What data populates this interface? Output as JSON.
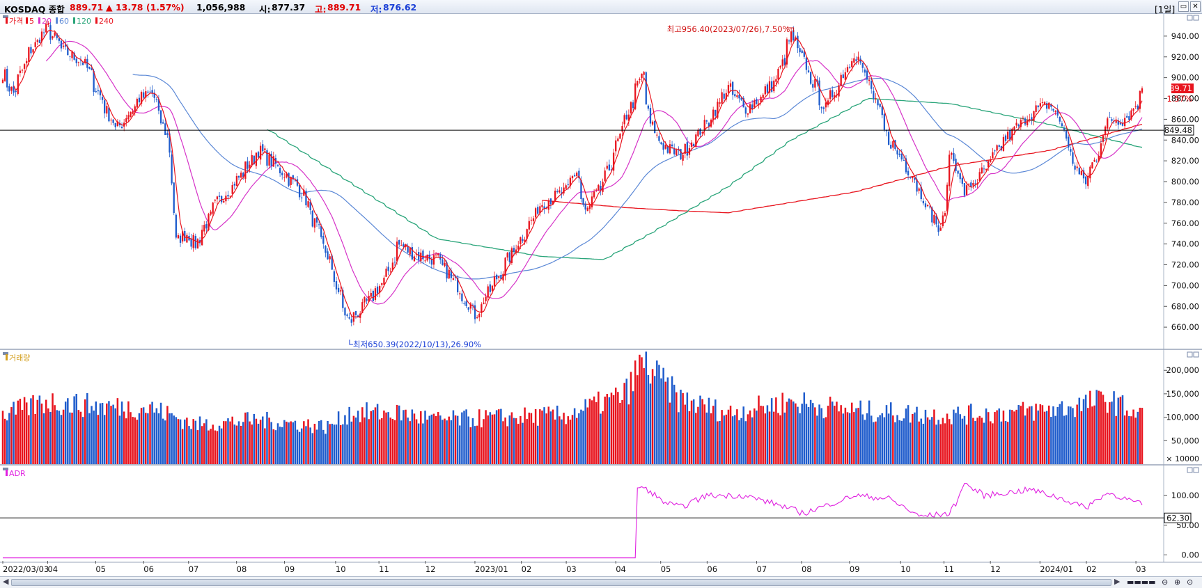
{
  "header": {
    "symbol": "KOSDAQ 종합",
    "price": "889.71",
    "change": "▲ 13.78 (1.57%)",
    "volume": "1,056,988",
    "open_label": "시:",
    "open": "877.37",
    "high_label": "고:",
    "high": "889.71",
    "low_label": "저:",
    "low": "876.62",
    "period": "[1일]",
    "min_icon": "minimize-icon",
    "close_icon": "close-icon"
  },
  "colors": {
    "up": "#e8141e",
    "down": "#1f5ccc",
    "ma5": "#e8141e",
    "ma20": "#d633c8",
    "ma60": "#5b88d6",
    "ma120": "#2aa57a",
    "ma240": "#e8141e",
    "adr": "#e020e0"
  },
  "chart_data": [
    {
      "type": "candlestick",
      "legend": [
        {
          "label": "가격",
          "color": "#e8141e"
        },
        {
          "label": "5",
          "color": "#e8141e"
        },
        {
          "label": "20",
          "color": "#d633c8"
        },
        {
          "label": "60",
          "color": "#5b88d6"
        },
        {
          "label": "120",
          "color": "#2aa57a"
        },
        {
          "label": "240",
          "color": "#e8141e"
        }
      ],
      "ylim": [
        640,
        960
      ],
      "yticks": [
        660,
        680,
        700,
        720,
        740,
        760,
        780,
        800,
        820,
        840,
        860,
        880,
        900,
        920,
        940
      ],
      "current_price_label": "889.71",
      "current_change_label": "1.57%",
      "horizontal_line": 849.48,
      "horizontal_line_label": "849.48",
      "annotation_high": "최고956.40(2023/07/26),7.50%",
      "annotation_low": "최저650.39(2022/10/13),26.90%",
      "close_points": [
        [
          "2022-03-03",
          905
        ],
        [
          "2022-03-10",
          885
        ],
        [
          "2022-03-21",
          925
        ],
        [
          "2022-04-01",
          948
        ],
        [
          "2022-04-12",
          925
        ],
        [
          "2022-04-25",
          915
        ],
        [
          "2022-05-09",
          870
        ],
        [
          "2022-05-16",
          850
        ],
        [
          "2022-05-31",
          880
        ],
        [
          "2022-06-08",
          885
        ],
        [
          "2022-06-20",
          830
        ],
        [
          "2022-06-23",
          742
        ],
        [
          "2022-06-30",
          750
        ],
        [
          "2022-07-06",
          740
        ],
        [
          "2022-07-20",
          780
        ],
        [
          "2022-08-01",
          800
        ],
        [
          "2022-08-16",
          830
        ],
        [
          "2022-08-31",
          810
        ],
        [
          "2022-09-13",
          790
        ],
        [
          "2022-09-30",
          725
        ],
        [
          "2022-10-07",
          690
        ],
        [
          "2022-10-13",
          665
        ],
        [
          "2022-10-26",
          685
        ],
        [
          "2022-11-07",
          710
        ],
        [
          "2022-11-14",
          740
        ],
        [
          "2022-11-25",
          730
        ],
        [
          "2022-12-09",
          725
        ],
        [
          "2022-12-22",
          700
        ],
        [
          "2023-01-03",
          672
        ],
        [
          "2023-01-16",
          705
        ],
        [
          "2023-02-01",
          745
        ],
        [
          "2023-02-15",
          780
        ],
        [
          "2023-03-02",
          790
        ],
        [
          "2023-03-09",
          810
        ],
        [
          "2023-03-15",
          770
        ],
        [
          "2023-03-27",
          800
        ],
        [
          "2023-04-10",
          860
        ],
        [
          "2023-04-21",
          905
        ],
        [
          "2023-04-26",
          855
        ],
        [
          "2023-05-04",
          835
        ],
        [
          "2023-05-15",
          825
        ],
        [
          "2023-06-01",
          855
        ],
        [
          "2023-06-15",
          890
        ],
        [
          "2023-06-26",
          870
        ],
        [
          "2023-07-06",
          880
        ],
        [
          "2023-07-17",
          900
        ],
        [
          "2023-07-26",
          940
        ],
        [
          "2023-08-03",
          915
        ],
        [
          "2023-08-17",
          870
        ],
        [
          "2023-09-05",
          925
        ],
        [
          "2023-09-14",
          895
        ],
        [
          "2023-09-27",
          840
        ],
        [
          "2023-10-11",
          810
        ],
        [
          "2023-10-24",
          770
        ],
        [
          "2023-10-31",
          750
        ],
        [
          "2023-11-06",
          830
        ],
        [
          "2023-11-15",
          790
        ],
        [
          "2023-11-28",
          810
        ],
        [
          "2023-12-11",
          840
        ],
        [
          "2023-12-28",
          866
        ],
        [
          "2024-01-09",
          875
        ],
        [
          "2024-01-17",
          855
        ],
        [
          "2024-01-25",
          815
        ],
        [
          "2024-02-01",
          800
        ],
        [
          "2024-02-07",
          820
        ],
        [
          "2024-02-16",
          860
        ],
        [
          "2024-02-26",
          860
        ],
        [
          "2024-03-06",
          875
        ],
        [
          "2024-03-08",
          889.71
        ]
      ],
      "ma240_points": [
        [
          "2023-02-15",
          782
        ],
        [
          "2023-04-10",
          775
        ],
        [
          "2023-05-15",
          772
        ],
        [
          "2023-06-15",
          770
        ],
        [
          "2023-07-26",
          780
        ],
        [
          "2023-09-05",
          790
        ],
        [
          "2023-11-06",
          815
        ],
        [
          "2024-01-09",
          830
        ],
        [
          "2024-03-08",
          855
        ]
      ],
      "ma120_points": [
        [
          "2022-08-22",
          850
        ],
        [
          "2022-10-13",
          800
        ],
        [
          "2022-12-09",
          745
        ],
        [
          "2023-02-15",
          728
        ],
        [
          "2023-03-27",
          725
        ],
        [
          "2023-04-26",
          750
        ],
        [
          "2023-06-15",
          795
        ],
        [
          "2023-07-26",
          840
        ],
        [
          "2023-09-14",
          880
        ],
        [
          "2023-11-06",
          875
        ],
        [
          "2024-01-09",
          855
        ],
        [
          "2024-03-08",
          833
        ]
      ]
    },
    {
      "type": "bar",
      "legend": [
        {
          "label": "거래량",
          "color": "#d4a020"
        }
      ],
      "ylim": [
        0,
        230000
      ],
      "yticks": [
        "200,000",
        "150,000",
        "100,000",
        "50,000"
      ],
      "yticks_values": [
        200000,
        150000,
        100000,
        50000
      ],
      "unit": "× 10000",
      "volume_points": [
        [
          "2022-03-03",
          105000
        ],
        [
          "2022-04-01",
          135000
        ],
        [
          "2022-05-03",
          125000
        ],
        [
          "2022-06-08",
          120000
        ],
        [
          "2022-07-06",
          85000
        ],
        [
          "2022-08-16",
          95000
        ],
        [
          "2022-09-30",
          80000
        ],
        [
          "2022-10-13",
          110000
        ],
        [
          "2022-11-14",
          110000
        ],
        [
          "2022-12-09",
          95000
        ],
        [
          "2023-01-16",
          100000
        ],
        [
          "2023-03-02",
          105000
        ],
        [
          "2023-04-10",
          150000
        ],
        [
          "2023-04-21",
          220000
        ],
        [
          "2023-05-15",
          140000
        ],
        [
          "2023-06-15",
          110000
        ],
        [
          "2023-07-26",
          135000
        ],
        [
          "2023-09-05",
          115000
        ],
        [
          "2023-10-31",
          105000
        ],
        [
          "2023-12-11",
          110000
        ],
        [
          "2024-01-17",
          120000
        ],
        [
          "2024-02-16",
          140000
        ],
        [
          "2024-03-08",
          105000
        ]
      ]
    },
    {
      "type": "line",
      "legend": [
        {
          "label": "ADR",
          "color": "#e020e0"
        }
      ],
      "ylim": [
        -10,
        140
      ],
      "yticks": [
        "100.00",
        "50.00",
        "0.00"
      ],
      "yticks_values": [
        100,
        50,
        0
      ],
      "horizontal_line": 62.3,
      "horizontal_line_label": "62.30",
      "adr_points": [
        [
          "2022-03-03",
          -5
        ],
        [
          "2023-04-17",
          -5
        ],
        [
          "2023-04-18",
          115
        ],
        [
          "2023-04-24",
          110
        ],
        [
          "2023-05-04",
          90
        ],
        [
          "2023-05-15",
          80
        ],
        [
          "2023-06-01",
          100
        ],
        [
          "2023-06-26",
          100
        ],
        [
          "2023-07-17",
          85
        ],
        [
          "2023-08-03",
          70
        ],
        [
          "2023-09-05",
          100
        ],
        [
          "2023-09-27",
          95
        ],
        [
          "2023-10-17",
          65
        ],
        [
          "2023-11-06",
          70
        ],
        [
          "2023-11-15",
          120
        ],
        [
          "2023-11-28",
          100
        ],
        [
          "2023-12-28",
          110
        ],
        [
          "2024-01-17",
          95
        ],
        [
          "2024-02-01",
          80
        ],
        [
          "2024-02-16",
          105
        ],
        [
          "2024-03-08",
          85
        ]
      ]
    }
  ],
  "x_axis": {
    "labels": [
      {
        "text": "2022/03/03",
        "date": "2022-03-03"
      },
      {
        "text": "04",
        "date": "2022-04-01"
      },
      {
        "text": "05",
        "date": "2022-05-02"
      },
      {
        "text": "06",
        "date": "2022-06-02"
      },
      {
        "text": "07",
        "date": "2022-07-01"
      },
      {
        "text": "08",
        "date": "2022-08-01"
      },
      {
        "text": "09",
        "date": "2022-09-01"
      },
      {
        "text": "10",
        "date": "2022-10-04"
      },
      {
        "text": "11",
        "date": "2022-11-01"
      },
      {
        "text": "12",
        "date": "2022-12-01"
      },
      {
        "text": "2023/01",
        "date": "2023-01-02"
      },
      {
        "text": "02",
        "date": "2023-02-01"
      },
      {
        "text": "03",
        "date": "2023-03-02"
      },
      {
        "text": "04",
        "date": "2023-04-03"
      },
      {
        "text": "05",
        "date": "2023-05-02"
      },
      {
        "text": "06",
        "date": "2023-06-01"
      },
      {
        "text": "07",
        "date": "2023-07-03"
      },
      {
        "text": "08",
        "date": "2023-08-01"
      },
      {
        "text": "09",
        "date": "2023-09-01"
      },
      {
        "text": "10",
        "date": "2023-10-04"
      },
      {
        "text": "11",
        "date": "2023-11-01"
      },
      {
        "text": "12",
        "date": "2023-12-01"
      },
      {
        "text": "2024/01",
        "date": "2024-01-02"
      },
      {
        "text": "02",
        "date": "2024-02-01"
      },
      {
        "text": "03",
        "date": "2024-03-04"
      }
    ]
  }
}
